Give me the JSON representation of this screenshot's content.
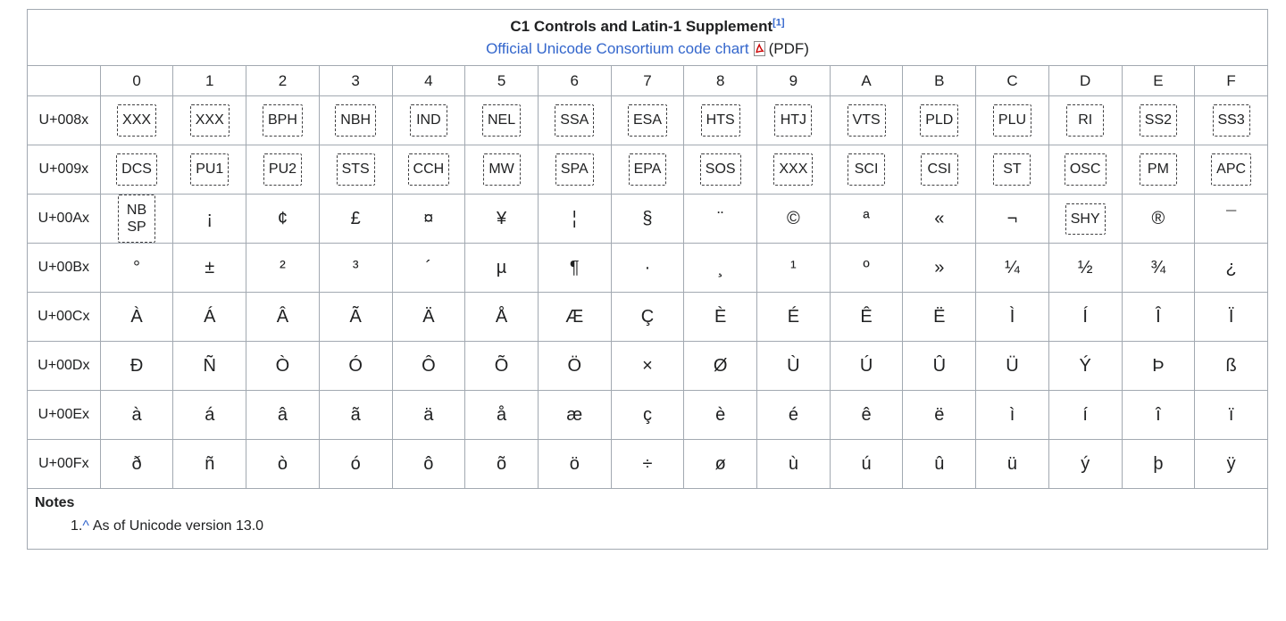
{
  "colors": {
    "link_blue": "#3366cc",
    "border_gray": "#a2a9b1",
    "text": "#202122",
    "pdf_red": "#cc0000"
  },
  "header": {
    "title": "C1 Controls and Latin-1 Supplement",
    "ref_label": "[1]",
    "link_text": "Official Unicode Consortium code chart",
    "pdf_label": "(PDF)"
  },
  "columns": [
    "0",
    "1",
    "2",
    "3",
    "4",
    "5",
    "6",
    "7",
    "8",
    "9",
    "A",
    "B",
    "C",
    "D",
    "E",
    "F"
  ],
  "rows": [
    {
      "label": "U+008x",
      "cells": [
        {
          "box": "XXX"
        },
        {
          "box": "XXX"
        },
        {
          "box": "BPH"
        },
        {
          "box": "NBH"
        },
        {
          "box": "IND"
        },
        {
          "box": "NEL"
        },
        {
          "box": "SSA"
        },
        {
          "box": "ESA"
        },
        {
          "box": "HTS"
        },
        {
          "box": "HTJ"
        },
        {
          "box": "VTS"
        },
        {
          "box": "PLD"
        },
        {
          "box": "PLU"
        },
        {
          "box": "RI"
        },
        {
          "box": "SS2"
        },
        {
          "box": "SS3"
        }
      ]
    },
    {
      "label": "U+009x",
      "cells": [
        {
          "box": "DCS"
        },
        {
          "box": "PU1"
        },
        {
          "box": "PU2"
        },
        {
          "box": "STS"
        },
        {
          "box": "CCH"
        },
        {
          "box": "MW"
        },
        {
          "box": "SPA"
        },
        {
          "box": "EPA"
        },
        {
          "box": "SOS"
        },
        {
          "box": "XXX"
        },
        {
          "box": "SCI"
        },
        {
          "box": "CSI"
        },
        {
          "box": "ST"
        },
        {
          "box": "OSC"
        },
        {
          "box": "PM"
        },
        {
          "box": "APC"
        }
      ]
    },
    {
      "label": "U+00Ax",
      "cells": [
        {
          "box": "NB\nSP"
        },
        "¡",
        "¢",
        "£",
        "¤",
        "¥",
        "¦",
        "§",
        "¨",
        "©",
        "ª",
        "«",
        "¬",
        {
          "box": "SHY"
        },
        "®",
        "¯"
      ]
    },
    {
      "label": "U+00Bx",
      "cells": [
        "°",
        "±",
        "²",
        "³",
        "´",
        "µ",
        "¶",
        "·",
        "¸",
        "¹",
        "º",
        "»",
        "¼",
        "½",
        "¾",
        "¿"
      ]
    },
    {
      "label": "U+00Cx",
      "cells": [
        "À",
        "Á",
        "Â",
        "Ã",
        "Ä",
        "Å",
        "Æ",
        "Ç",
        "È",
        "É",
        "Ê",
        "Ë",
        "Ì",
        "Í",
        "Î",
        "Ï"
      ]
    },
    {
      "label": "U+00Dx",
      "cells": [
        "Ð",
        "Ñ",
        "Ò",
        "Ó",
        "Ô",
        "Õ",
        "Ö",
        "×",
        "Ø",
        "Ù",
        "Ú",
        "Û",
        "Ü",
        "Ý",
        "Þ",
        "ß"
      ]
    },
    {
      "label": "U+00Ex",
      "cells": [
        "à",
        "á",
        "â",
        "ã",
        "ä",
        "å",
        "æ",
        "ç",
        "è",
        "é",
        "ê",
        "ë",
        "ì",
        "í",
        "î",
        "ï"
      ]
    },
    {
      "label": "U+00Fx",
      "cells": [
        "ð",
        "ñ",
        "ò",
        "ó",
        "ô",
        "õ",
        "ö",
        "÷",
        "ø",
        "ù",
        "ú",
        "û",
        "ü",
        "ý",
        "þ",
        "ÿ"
      ]
    }
  ],
  "notes": {
    "heading": "Notes",
    "items": [
      {
        "marker": "1.",
        "backlink": "^",
        "text": "As of Unicode version 13.0"
      }
    ]
  }
}
